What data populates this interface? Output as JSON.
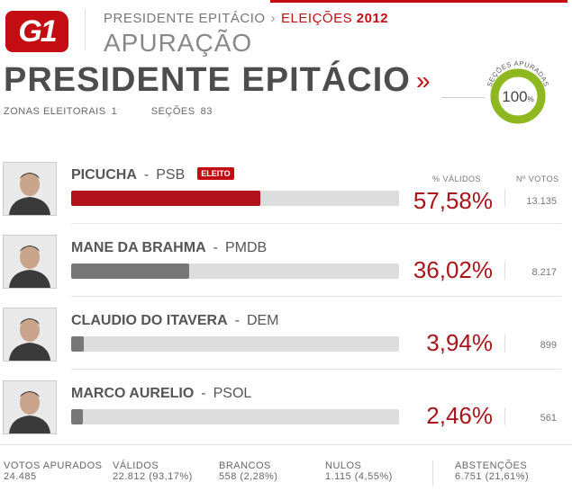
{
  "header": {
    "logo_text": "G1",
    "breadcrumb_city": "PRESIDENTE EPITÁCIO",
    "breadcrumb_sep": "›",
    "breadcrumb_election": "ELEIÇÕES",
    "breadcrumb_year": "2012",
    "section_title": "APURAÇÃO",
    "city_title": "PRESIDENTE EPITÁCIO",
    "more_icon": "raquo"
  },
  "stats": {
    "zonas_label": "ZONAS ELEITORAIS",
    "zonas_value": "1",
    "secoes_label": "SEÇÕES",
    "secoes_value": "83"
  },
  "progress": {
    "label": "SEÇÕES APURADAS",
    "value_text": "100",
    "unit": "%",
    "fraction": 1.0,
    "color": "#8fb820"
  },
  "columns": {
    "pct_label": "% VÁLIDOS",
    "votes_label": "Nº VOTOS"
  },
  "candidates": [
    {
      "name": "PICUCHA",
      "party": "PSB",
      "badge": "ELEITO",
      "pct_text": "57,58%",
      "pct": 57.58,
      "votes": "13.135",
      "bar_color": "#b0141a"
    },
    {
      "name": "MANE DA BRAHMA",
      "party": "PMDB",
      "badge": "",
      "pct_text": "36,02%",
      "pct": 36.02,
      "votes": "8.217",
      "bar_color": "#777777"
    },
    {
      "name": "CLAUDIO DO ITAVERA",
      "party": "DEM",
      "badge": "",
      "pct_text": "3,94%",
      "pct": 3.94,
      "votes": "899",
      "bar_color": "#777777"
    },
    {
      "name": "MARCO AURELIO",
      "party": "PSOL",
      "badge": "",
      "pct_text": "2,46%",
      "pct": 2.46,
      "votes": "561",
      "bar_color": "#777777"
    }
  ],
  "footer": {
    "votos_apurados_label": "VOTOS APURADOS",
    "votos_apurados_value": "24.485",
    "validos_label": "VÁLIDOS",
    "validos_value": "22.812 (93,17%)",
    "brancos_label": "BRANCOS",
    "brancos_value": "558 (2,28%)",
    "nulos_label": "NULOS",
    "nulos_value": "1.115 (4,55%)",
    "abstencoes_label": "ABSTENÇÕES",
    "abstencoes_value": "6.751 (21,61%)"
  }
}
